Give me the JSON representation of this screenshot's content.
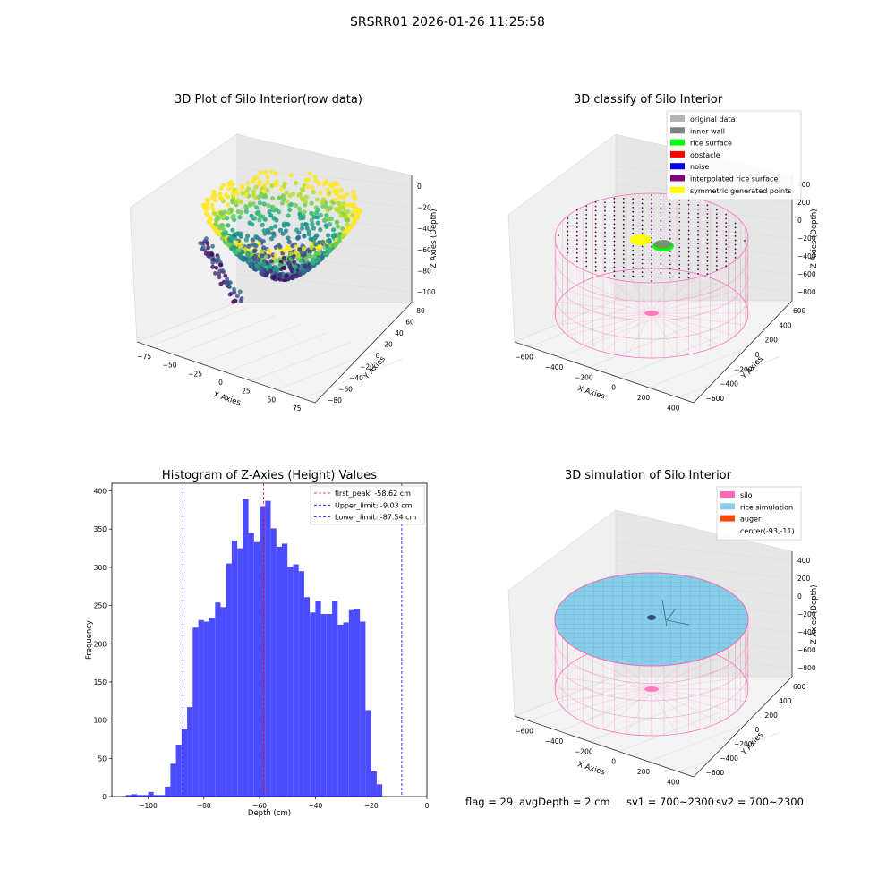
{
  "figure": {
    "suptitle": "SRSRR01 2026-01-26 11:25:58",
    "background": "#ffffff"
  },
  "panel1": {
    "title": "3D Plot of Silo Interior(row data)",
    "xlabel": "X Axies",
    "ylabel": "Y Axies",
    "zlabel": "Z Axies (Depth)",
    "xticks": [
      "−75",
      "−50",
      "−25",
      "0",
      "25",
      "50",
      "75"
    ],
    "yticks": [
      "−80",
      "−60",
      "−40",
      "−20",
      "0",
      "20",
      "40",
      "60",
      "80"
    ],
    "zticks": [
      "0",
      "−20",
      "−40",
      "−60",
      "−80",
      "−100"
    ],
    "colormap": "viridis"
  },
  "panel2": {
    "title": "3D classify of Silo Interior",
    "xlabel": "X Axies",
    "ylabel": "Y Axies",
    "zlabel": "Z Axies (Depth)",
    "xticks": [
      "−600",
      "−400",
      "−200",
      "0",
      "200",
      "400"
    ],
    "yticks": [
      "−600",
      "−400",
      "−200",
      "0",
      "200",
      "400",
      "600"
    ],
    "zticks": [
      "400",
      "200",
      "0",
      "−200",
      "−400",
      "−600",
      "−800"
    ],
    "legend": [
      {
        "label": "original data",
        "color": "#b3b3b3"
      },
      {
        "label": "inner wall",
        "color": "#808080"
      },
      {
        "label": "rice surface",
        "color": "#00ff00"
      },
      {
        "label": "obstacle",
        "color": "#ff0000"
      },
      {
        "label": "noise",
        "color": "#0000ff"
      },
      {
        "label": "interpolated rice surface",
        "color": "#800080"
      },
      {
        "label": "symmetric generated points",
        "color": "#ffff00"
      }
    ]
  },
  "panel3": {
    "title": "Histogram of Z-Axies (Height) Values",
    "xlabel": "Depth (cm)",
    "ylabel": "Frequency",
    "legend": [
      {
        "label": "first_peak: -58.62 cm",
        "color": "#ff0000"
      },
      {
        "label": "Upper_limit: -9.03 cm",
        "color": "#0000ff"
      },
      {
        "label": "Lower_limit: -87.54 cm",
        "color": "#0000ff"
      }
    ]
  },
  "panel4": {
    "title": "3D simulation of Silo Interior",
    "xlabel": "X Axies",
    "ylabel": "Y Axies",
    "zlabel": "Z Axies (Depth)",
    "xticks": [
      "−600",
      "−400",
      "−200",
      "0",
      "200",
      "400"
    ],
    "yticks": [
      "−600",
      "−400",
      "−200",
      "0",
      "200",
      "400",
      "600"
    ],
    "zticks": [
      "400",
      "200",
      "0",
      "−200",
      "−400",
      "−600",
      "−800"
    ],
    "legend": [
      {
        "label": "silo",
        "color": "#ff69b4"
      },
      {
        "label": "rice simulation",
        "color": "#87ceeb"
      },
      {
        "label": "auger",
        "color": "#ff4500"
      },
      {
        "label": "center(-93,-11)",
        "color": "none"
      }
    ]
  },
  "status": {
    "flag": "flag = 29",
    "avg_depth": "avgDepth = 2 cm",
    "sv1": "sv1 = 700~2300",
    "sv2": "sv2 = 700~2300"
  },
  "chart_data": [
    {
      "type": "scatter",
      "title": "3D Plot of Silo Interior(row data)",
      "xlabel": "X Axies",
      "ylabel": "Y Axies",
      "zlabel": "Z Axies (Depth)",
      "xlim": [
        -90,
        90
      ],
      "ylim": [
        -80,
        80
      ],
      "zlim": [
        -110,
        0
      ],
      "colormap": "viridis"
    },
    {
      "type": "scatter",
      "title": "3D classify of Silo Interior",
      "xlabel": "X Axies",
      "ylabel": "Y Axies",
      "zlabel": "Z Axies (Depth)",
      "xlim": [
        -700,
        500
      ],
      "ylim": [
        -650,
        650
      ],
      "zlim": [
        -900,
        400
      ],
      "series": [
        {
          "name": "original data"
        },
        {
          "name": "inner wall"
        },
        {
          "name": "rice surface"
        },
        {
          "name": "obstacle"
        },
        {
          "name": "noise"
        },
        {
          "name": "interpolated rice surface"
        },
        {
          "name": "symmetric generated points"
        }
      ],
      "legend_position": "upper-right"
    },
    {
      "type": "bar",
      "title": "Histogram of Z-Axies (Height) Values",
      "xlabel": "Depth (cm)",
      "ylabel": "Frequency",
      "xlim": [
        -113,
        0
      ],
      "ylim": [
        0,
        410
      ],
      "xticks": [
        -100,
        -80,
        -60,
        -40,
        -20,
        0
      ],
      "yticks": [
        0,
        50,
        100,
        150,
        200,
        250,
        300,
        350,
        400
      ],
      "bin_width": 2,
      "bin_start": -108,
      "values": [
        2,
        3,
        2,
        2,
        6,
        2,
        2,
        13,
        43,
        68,
        88,
        117,
        221,
        231,
        229,
        234,
        254,
        248,
        305,
        335,
        325,
        389,
        345,
        333,
        380,
        387,
        351,
        327,
        331,
        301,
        304,
        295,
        261,
        241,
        256,
        239,
        239,
        256,
        225,
        228,
        244,
        246,
        229,
        113,
        33,
        16
      ],
      "color": "#0000ff",
      "vlines": [
        {
          "x": -58.62,
          "name": "first_peak: -58.62 cm",
          "color": "#ff0000"
        },
        {
          "x": -9.03,
          "name": "Upper_limit: -9.03 cm",
          "color": "#0000ff"
        },
        {
          "x": -87.54,
          "name": "Lower_limit: -87.54 cm",
          "color": "#0000ff"
        }
      ],
      "legend_position": "upper-right"
    },
    {
      "type": "scatter",
      "title": "3D simulation of Silo Interior",
      "xlabel": "X Axies",
      "ylabel": "Y Axies",
      "zlabel": "Z Axies (Depth)",
      "xlim": [
        -700,
        500
      ],
      "ylim": [
        -650,
        650
      ],
      "zlim": [
        -900,
        400
      ],
      "series": [
        {
          "name": "silo"
        },
        {
          "name": "rice simulation"
        },
        {
          "name": "auger"
        }
      ],
      "annotation": "center(-93,-11)",
      "legend_position": "upper-right"
    }
  ]
}
